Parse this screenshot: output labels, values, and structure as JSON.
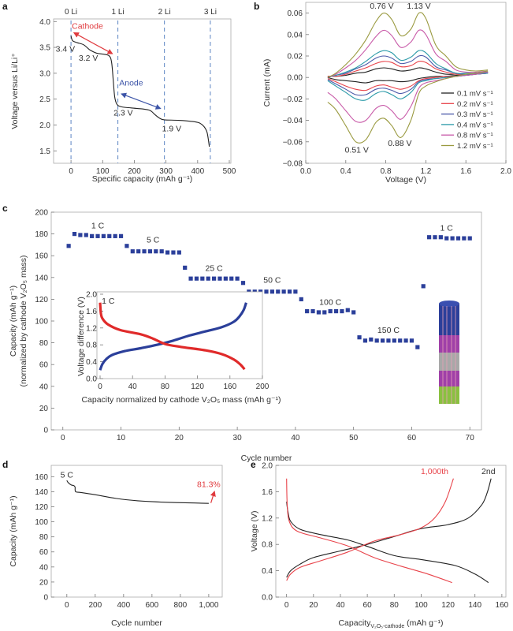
{
  "panel_letters": [
    "a",
    "b",
    "c",
    "d",
    "e"
  ],
  "chart_data": [
    {
      "panel": "a",
      "type": "line",
      "xlabel": "Specific capacity (mAh g⁻¹)",
      "ylabel": "Voltage versus Li/Li⁺",
      "xlim": [
        -55,
        505
      ],
      "ylim": [
        1.26,
        4.05
      ],
      "x_ticks": [
        "0",
        "100",
        "200",
        "300",
        "400",
        "500"
      ],
      "y_ticks": [
        "1.5",
        "2.0",
        "2.5",
        "3.0",
        "3.5",
        "4.0"
      ],
      "reference_lines": {
        "x": [
          0,
          148,
          295,
          440
        ],
        "labels": [
          "0 Li",
          "1 Li",
          "2 Li",
          "3 Li"
        ],
        "color": "#6a8fc8",
        "style": "dashed"
      },
      "series": [
        {
          "color": "#222222",
          "x": [
            0,
            5,
            20,
            40,
            60,
            80,
            100,
            120,
            128,
            133,
            138,
            145,
            160,
            190,
            225,
            250,
            265,
            280,
            295,
            340,
            380,
            405,
            420,
            430,
            437
          ],
          "y": [
            3.72,
            3.63,
            3.59,
            3.55,
            3.45,
            3.39,
            3.37,
            3.34,
            3.22,
            2.9,
            2.55,
            2.4,
            2.35,
            2.33,
            2.31,
            2.28,
            2.2,
            2.13,
            2.1,
            2.09,
            2.07,
            2.04,
            1.97,
            1.85,
            1.58
          ]
        }
      ],
      "arrows": [
        {
          "from": [
            130,
            3.38
          ],
          "to": [
            10,
            3.78
          ],
          "color": "#e03a3e",
          "double": true
        },
        {
          "from": [
            160,
            2.6
          ],
          "to": [
            282,
            2.32
          ],
          "color": "#3d55a8",
          "double": true
        }
      ],
      "annotations": [
        {
          "text": "Cathode",
          "x": 52,
          "y": 3.86,
          "color": "#e03a3e"
        },
        {
          "text": "3.4 V",
          "x": -18,
          "y": 3.42,
          "color": "#333333"
        },
        {
          "text": "3.2 V",
          "x": 55,
          "y": 3.24,
          "color": "#333333"
        },
        {
          "text": "Anode",
          "x": 190,
          "y": 2.76,
          "color": "#3d55a8"
        },
        {
          "text": "2.3 V",
          "x": 165,
          "y": 2.18,
          "color": "#333333"
        },
        {
          "text": "1.9 V",
          "x": 318,
          "y": 1.88,
          "color": "#333333"
        }
      ]
    },
    {
      "panel": "b",
      "type": "line",
      "xlabel": "Voltage (V)",
      "ylabel": "Current (mA)",
      "xlim": [
        0,
        2.0
      ],
      "ylim": [
        -0.08,
        0.07
      ],
      "x_ticks": [
        "0.0",
        "0.4",
        "0.8",
        "1.2",
        "1.6",
        "2.0"
      ],
      "y_ticks": [
        "−0.08",
        "−0.06",
        "−0.04",
        "−0.02",
        "0.00",
        "0.02",
        "0.04",
        "0.06"
      ],
      "legend": "right",
      "x": [
        0.22,
        0.3,
        0.4,
        0.5,
        0.6,
        0.7,
        0.78,
        0.86,
        0.95,
        1.05,
        1.13,
        1.2,
        1.3,
        1.4,
        1.5,
        1.6,
        1.7,
        1.82
      ],
      "series": [
        {
          "name": "0.1 mV s⁻¹",
          "color": "#222222",
          "upper": [
            0.001,
            0.001,
            0.002,
            0.004,
            0.005,
            0.008,
            0.009,
            0.008,
            0.006,
            0.007,
            0.009,
            0.008,
            0.005,
            0.003,
            0.003,
            0.003,
            0.004,
            0.005
          ],
          "lower": [
            0.0,
            -0.002,
            -0.003,
            -0.004,
            -0.005,
            -0.003,
            -0.003,
            -0.003,
            -0.004,
            -0.003,
            -0.001,
            0.0,
            0.001,
            0.001,
            0.002,
            0.002,
            0.003,
            0.004
          ]
        },
        {
          "name": "0.2 mV s⁻¹",
          "color": "#e8434a",
          "upper": [
            0.001,
            0.001,
            0.003,
            0.006,
            0.009,
            0.013,
            0.015,
            0.014,
            0.01,
            0.011,
            0.015,
            0.014,
            0.008,
            0.005,
            0.003,
            0.003,
            0.004,
            0.005
          ],
          "lower": [
            -0.001,
            -0.004,
            -0.008,
            -0.011,
            -0.012,
            -0.008,
            -0.007,
            -0.009,
            -0.011,
            -0.008,
            -0.003,
            -0.001,
            0.0,
            0.001,
            0.001,
            0.002,
            0.003,
            0.004
          ]
        },
        {
          "name": "0.3 mV s⁻¹",
          "color": "#4a58a8",
          "upper": [
            0.0,
            0.002,
            0.004,
            0.008,
            0.012,
            0.018,
            0.02,
            0.018,
            0.013,
            0.015,
            0.02,
            0.019,
            0.01,
            0.007,
            0.004,
            0.003,
            0.004,
            0.005
          ],
          "lower": [
            -0.002,
            -0.006,
            -0.011,
            -0.016,
            -0.016,
            -0.011,
            -0.01,
            -0.012,
            -0.015,
            -0.011,
            -0.004,
            -0.002,
            -0.001,
            0.0,
            0.001,
            0.002,
            0.003,
            0.004
          ]
        },
        {
          "name": "0.4 mV s⁻¹",
          "color": "#2a9aa8",
          "upper": [
            0.0,
            0.002,
            0.005,
            0.009,
            0.015,
            0.022,
            0.025,
            0.023,
            0.016,
            0.019,
            0.025,
            0.023,
            0.013,
            0.008,
            0.004,
            0.004,
            0.004,
            0.005
          ],
          "lower": [
            -0.003,
            -0.008,
            -0.014,
            -0.02,
            -0.021,
            -0.015,
            -0.013,
            -0.016,
            -0.02,
            -0.014,
            -0.005,
            -0.003,
            -0.001,
            0.0,
            0.001,
            0.002,
            0.003,
            0.004
          ]
        },
        {
          "name": "0.8 mV s⁻¹",
          "color": "#c85aa8",
          "upper": [
            0.0,
            0.003,
            0.009,
            0.016,
            0.026,
            0.038,
            0.044,
            0.039,
            0.028,
            0.033,
            0.044,
            0.04,
            0.022,
            0.015,
            0.007,
            0.005,
            0.005,
            0.006
          ],
          "lower": [
            -0.014,
            -0.02,
            -0.031,
            -0.041,
            -0.04,
            -0.029,
            -0.026,
            -0.031,
            -0.039,
            -0.027,
            -0.01,
            -0.005,
            -0.003,
            -0.001,
            0.001,
            0.002,
            0.003,
            0.005
          ]
        },
        {
          "name": "1.2 mV s⁻¹",
          "color": "#9a9a40",
          "upper": [
            0.0,
            0.004,
            0.012,
            0.022,
            0.035,
            0.052,
            0.06,
            0.054,
            0.039,
            0.045,
            0.06,
            0.055,
            0.03,
            0.02,
            0.01,
            0.007,
            0.006,
            0.007
          ],
          "lower": [
            -0.023,
            -0.03,
            -0.045,
            -0.06,
            -0.058,
            -0.042,
            -0.038,
            -0.045,
            -0.056,
            -0.04,
            -0.015,
            -0.008,
            -0.004,
            -0.001,
            0.001,
            0.003,
            0.004,
            0.006
          ]
        }
      ],
      "annotations": [
        {
          "text": "0.76 V",
          "x": 0.76,
          "y": 0.064,
          "color": "#333333"
        },
        {
          "text": "1.13 V",
          "x": 1.13,
          "y": 0.064,
          "color": "#333333"
        },
        {
          "text": "0.51 V",
          "x": 0.51,
          "y": -0.07,
          "color": "#333333"
        },
        {
          "text": "0.88 V",
          "x": 0.94,
          "y": -0.064,
          "color": "#333333"
        }
      ]
    },
    {
      "panel": "c",
      "type": "scatter",
      "xlabel": "Cycle number",
      "ylabel": "Capacity (mAh g⁻¹)",
      "ylabel2": "(normalized by cathode V₂O₅ mass)",
      "xlim": [
        -2,
        72
      ],
      "ylim": [
        0,
        200
      ],
      "x_ticks": [
        "0",
        "10",
        "20",
        "30",
        "40",
        "50",
        "60",
        "70"
      ],
      "y_ticks": [
        "0",
        "20",
        "40",
        "60",
        "80",
        "100",
        "120",
        "140",
        "160",
        "180",
        "200"
      ],
      "color": "#2b3f9a",
      "x": [
        1,
        2,
        3,
        4,
        5,
        6,
        7,
        8,
        9,
        10,
        11,
        12,
        13,
        14,
        15,
        16,
        17,
        18,
        19,
        20,
        21,
        22,
        23,
        24,
        25,
        26,
        27,
        28,
        29,
        30,
        31,
        32,
        33,
        34,
        35,
        36,
        37,
        38,
        39,
        40,
        41,
        42,
        43,
        44,
        45,
        46,
        47,
        48,
        49,
        50,
        51,
        52,
        53,
        54,
        55,
        56,
        57,
        58,
        59,
        60,
        61,
        62,
        63,
        64,
        65,
        66,
        67,
        68,
        69,
        70
      ],
      "y": [
        169,
        180,
        179,
        179,
        178,
        178,
        178,
        178,
        178,
        178,
        169,
        164,
        164,
        164,
        164,
        164,
        164,
        163,
        163,
        163,
        149,
        139,
        139,
        139,
        139,
        139,
        139,
        139,
        139,
        139,
        135,
        127,
        127,
        127,
        127,
        127,
        127,
        127,
        127,
        127,
        120,
        109,
        109,
        108,
        108,
        109,
        109,
        109,
        110,
        108,
        85,
        82,
        83,
        82,
        82,
        82,
        82,
        82,
        82,
        82,
        76,
        132,
        177,
        177,
        177,
        176,
        176,
        176,
        176,
        176
      ],
      "annotations": [
        {
          "text": "1 C",
          "x": 6,
          "y": 185,
          "color": "#333333"
        },
        {
          "text": "5 C",
          "x": 15.5,
          "y": 172,
          "color": "#333333"
        },
        {
          "text": "25 C",
          "x": 26,
          "y": 146,
          "color": "#333333"
        },
        {
          "text": "50 C",
          "x": 36,
          "y": 135,
          "color": "#333333"
        },
        {
          "text": "100 C",
          "x": 46,
          "y": 115,
          "color": "#333333"
        },
        {
          "text": "150 C",
          "x": 56,
          "y": 89,
          "color": "#333333"
        },
        {
          "text": "1 C",
          "x": 66,
          "y": 183,
          "color": "#333333"
        }
      ]
    },
    {
      "panel": "c-inset",
      "type": "line",
      "xlabel": "Capacity normalized by cathode V₂O₅ mass (mAh g⁻¹)",
      "ylabel": "Voltage difference (V)",
      "xlim": [
        0,
        200
      ],
      "ylim": [
        0,
        2.0
      ],
      "x_ticks": [
        "0",
        "40",
        "80",
        "120",
        "160",
        "200"
      ],
      "y_ticks": [
        "0.0",
        "0.4",
        "0.8",
        "1.2",
        "1.6",
        "2.0"
      ],
      "series": [
        {
          "color": "#2b3f9a",
          "x": [
            0,
            3,
            8,
            15,
            30,
            50,
            70,
            90,
            110,
            130,
            150,
            165,
            172,
            177,
            180
          ],
          "y": [
            0.2,
            0.35,
            0.47,
            0.56,
            0.65,
            0.72,
            0.8,
            0.9,
            1.02,
            1.12,
            1.22,
            1.35,
            1.48,
            1.63,
            1.8
          ]
        },
        {
          "color": "#e02a2a",
          "x": [
            0,
            1,
            3,
            10,
            25,
            50,
            65,
            80,
            100,
            130,
            150,
            165,
            173,
            178
          ],
          "y": [
            1.8,
            1.55,
            1.42,
            1.28,
            1.15,
            1.05,
            0.95,
            0.82,
            0.75,
            0.67,
            0.58,
            0.45,
            0.33,
            0.22
          ]
        }
      ],
      "annotations": [
        {
          "text": "1 C",
          "x": 10,
          "y": 1.78,
          "color": "#333333"
        }
      ]
    },
    {
      "panel": "d",
      "type": "line",
      "xlabel": "Cycle number",
      "ylabel": "Capacity (mAh g⁻¹)",
      "xlim": [
        -110,
        1095
      ],
      "ylim": [
        0,
        175
      ],
      "x_ticks": [
        "0",
        "200",
        "400",
        "600",
        "800",
        "1,000"
      ],
      "y_ticks": [
        "0",
        "20",
        "40",
        "60",
        "80",
        "100",
        "120",
        "140",
        "160"
      ],
      "series": [
        {
          "color": "#222222",
          "x": [
            0,
            10,
            30,
            50,
            58,
            62,
            100,
            200,
            350,
            500,
            700,
            900,
            1000
          ],
          "y": [
            155,
            152,
            149,
            148,
            146,
            140,
            139,
            136,
            131,
            128,
            126,
            125,
            124.5
          ]
        }
      ],
      "arrows": [
        {
          "from": [
            1015,
            125
          ],
          "to": [
            1040,
            140
          ],
          "color": "#e03a3e",
          "double": false
        }
      ],
      "annotations": [
        {
          "text": "5 C",
          "x": 0,
          "y": 159,
          "color": "#333333"
        },
        {
          "text": "81.3%",
          "x": 1000,
          "y": 146,
          "color": "#e03a3e"
        }
      ]
    },
    {
      "panel": "e",
      "type": "line",
      "xlabel": "Capacity",
      "xlabel_sub": "V₂O₅-cathode",
      "xlabel_unit": " (mAh g⁻¹)",
      "ylabel": "Voltage (V)",
      "xlim": [
        -8,
        163
      ],
      "ylim": [
        0,
        2.0
      ],
      "x_ticks": [
        "0",
        "20",
        "40",
        "60",
        "80",
        "100",
        "120",
        "140",
        "160"
      ],
      "y_ticks": [
        "0.0",
        "0.4",
        "0.8",
        "1.2",
        "1.6",
        "2.0"
      ],
      "series": [
        {
          "name": "2nd",
          "color": "#222222",
          "x": [
            0,
            3,
            10,
            20,
            40,
            60,
            80,
            100,
            120,
            135,
            145,
            149,
            152
          ],
          "y": [
            0.3,
            0.4,
            0.5,
            0.6,
            0.7,
            0.8,
            0.92,
            1.04,
            1.1,
            1.2,
            1.4,
            1.58,
            1.8
          ]
        },
        {
          "name": "2nd",
          "color": "#222222",
          "x": [
            0,
            1,
            3,
            10,
            25,
            45,
            60,
            80,
            100,
            125,
            140,
            150
          ],
          "y": [
            1.45,
            1.3,
            1.15,
            1.03,
            0.95,
            0.87,
            0.77,
            0.63,
            0.57,
            0.48,
            0.35,
            0.22
          ]
        },
        {
          "name": "1,000th",
          "color": "#e8434a",
          "x": [
            0,
            3,
            10,
            25,
            45,
            65,
            85,
            100,
            110,
            118,
            124
          ],
          "y": [
            0.25,
            0.35,
            0.45,
            0.55,
            0.68,
            0.85,
            0.95,
            1.05,
            1.2,
            1.45,
            1.8
          ]
        },
        {
          "name": "1,000th",
          "color": "#e8434a",
          "x": [
            0,
            0.5,
            2,
            8,
            25,
            45,
            65,
            85,
            105,
            123
          ],
          "y": [
            1.8,
            1.4,
            1.15,
            1.0,
            0.9,
            0.78,
            0.6,
            0.47,
            0.35,
            0.22
          ]
        }
      ],
      "annotations": [
        {
          "text": "1,000th",
          "x": 110,
          "y": 1.87,
          "color": "#e8434a"
        },
        {
          "text": "2nd",
          "x": 150,
          "y": 1.87,
          "color": "#333333"
        }
      ]
    }
  ]
}
